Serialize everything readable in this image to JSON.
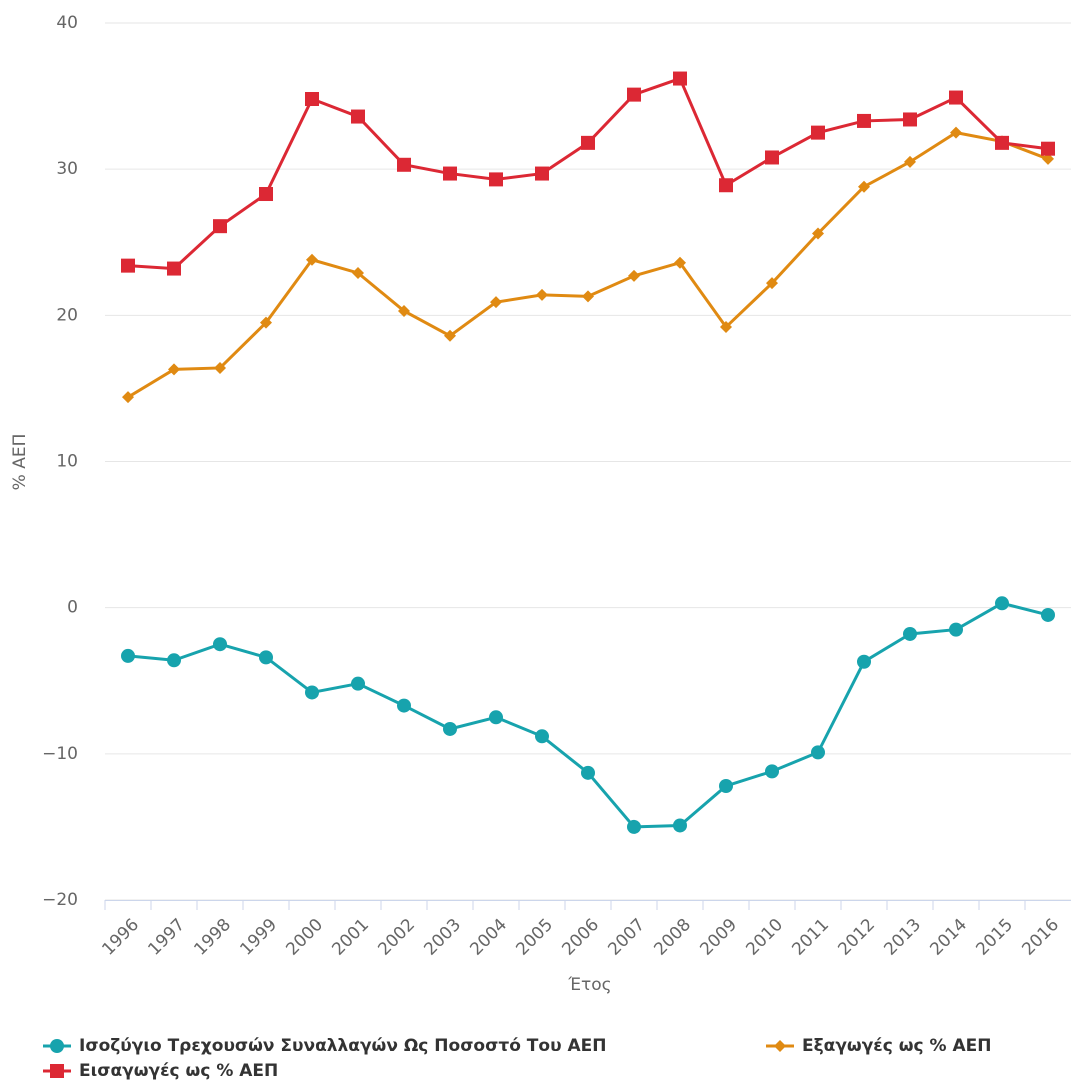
{
  "chart_data": {
    "type": "line",
    "y_label": "% ΑΕΠ",
    "x_label": "Έτος",
    "categories": [
      "1996",
      "1997",
      "1998",
      "1999",
      "2000",
      "2001",
      "2002",
      "2003",
      "2004",
      "2005",
      "2006",
      "2007",
      "2008",
      "2009",
      "2010",
      "2011",
      "2012",
      "2013",
      "2014",
      "2015",
      "2016"
    ],
    "series": [
      {
        "name": "Ισοζύγιο Τρεχουσών Συναλλαγών Ως Ποσοστό Του ΑΕΠ",
        "color": "#17a3ad",
        "marker": "circle",
        "values": [
          -3.3,
          -3.6,
          -2.5,
          -3.4,
          -5.8,
          -5.2,
          -6.7,
          -8.3,
          -7.5,
          -8.8,
          -11.3,
          -15.0,
          -14.9,
          -12.2,
          -11.2,
          -9.9,
          -3.7,
          -1.8,
          -1.5,
          0.3,
          -0.5
        ]
      },
      {
        "name": "Εξαγωγές ως % ΑΕΠ",
        "color": "#e08a12",
        "marker": "diamond",
        "values": [
          14.4,
          16.3,
          16.4,
          19.5,
          23.8,
          22.9,
          20.3,
          18.6,
          20.9,
          21.4,
          21.3,
          22.7,
          23.6,
          19.2,
          22.2,
          25.6,
          28.8,
          30.5,
          32.5,
          31.9,
          30.7
        ]
      },
      {
        "name": "Εισαγωγές ως % ΑΕΠ",
        "color": "#dc2834",
        "marker": "square",
        "values": [
          23.4,
          23.2,
          26.1,
          28.3,
          34.8,
          33.6,
          30.3,
          29.7,
          29.3,
          29.7,
          31.8,
          35.1,
          36.2,
          28.9,
          30.8,
          32.5,
          33.3,
          33.4,
          34.9,
          31.8,
          31.4
        ]
      }
    ],
    "ylim": [
      -20,
      40
    ],
    "yticks": [
      {
        "value": -20,
        "label": "−20"
      },
      {
        "value": -10,
        "label": "−10"
      },
      0,
      10,
      20,
      30,
      40
    ],
    "grid": true,
    "legend": "bottom"
  }
}
